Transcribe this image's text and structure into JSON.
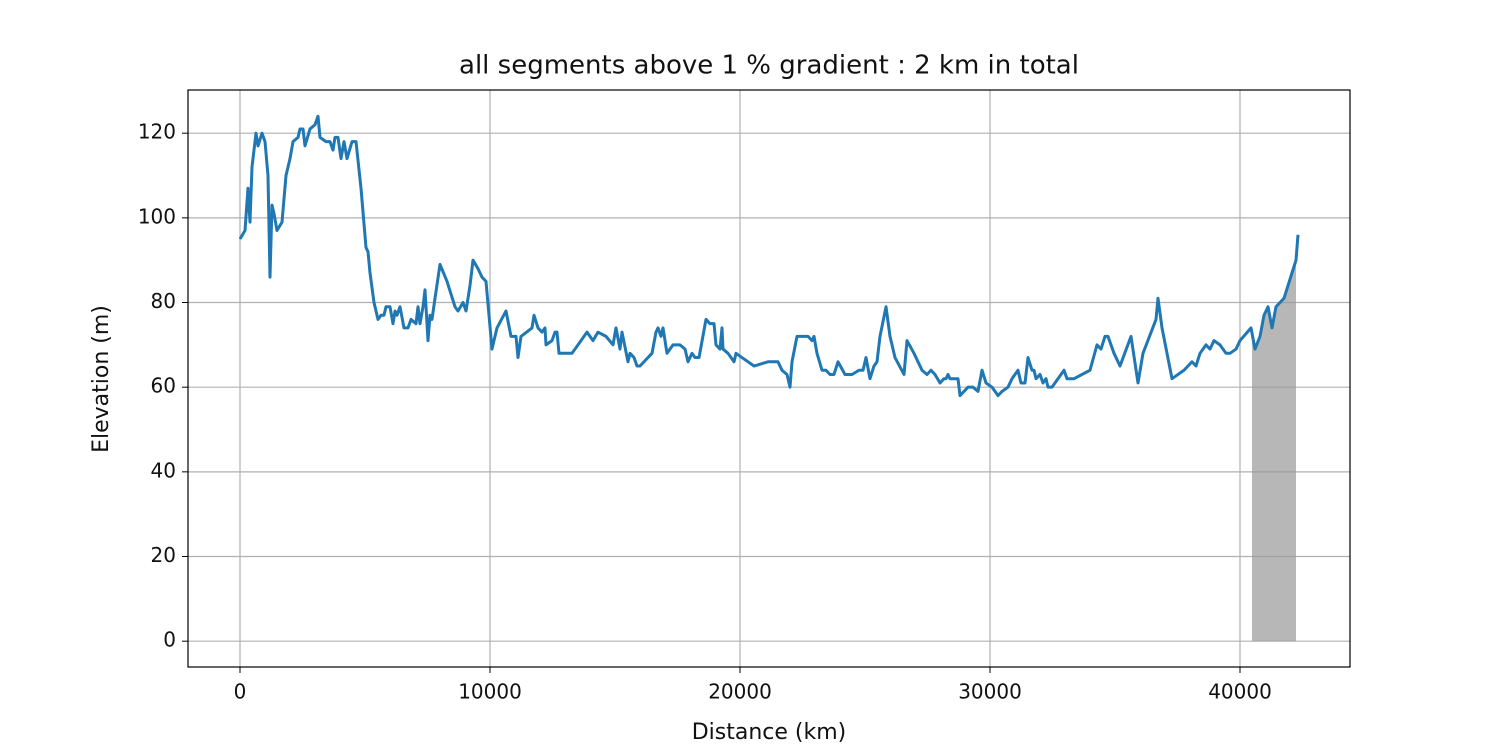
{
  "chart_data": {
    "type": "line",
    "title": "all segments above 1 % gradient : 2 km in total",
    "xlabel": "Distance (km)",
    "ylabel": "Elevation (m)",
    "x": [
      0,
      200,
      320,
      400,
      480,
      640,
      720,
      880,
      1000,
      1120,
      1200,
      1280,
      1360,
      1480,
      1680,
      1840,
      2000,
      2120,
      2320,
      2400,
      2520,
      2600,
      2800,
      3000,
      3120,
      3200,
      3440,
      3600,
      3720,
      3800,
      3920,
      4040,
      4160,
      4280,
      4480,
      4640,
      4840,
      5040,
      5120,
      5200,
      5360,
      5520,
      5640,
      5760,
      5840,
      6000,
      6120,
      6200,
      6280,
      6400,
      6560,
      6720,
      6840,
      7040,
      7120,
      7200,
      7320,
      7400,
      7520,
      7600,
      7680,
      7800,
      8000,
      8280,
      8600,
      8720,
      8920,
      9040,
      9200,
      9320,
      9520,
      9680,
      9840,
      10080,
      10280,
      10640,
      10840,
      11040,
      11120,
      11240,
      11680,
      11760,
      11920,
      12080,
      12200,
      12240,
      12480,
      12600,
      12680,
      12760,
      13280,
      13880,
      14120,
      14320,
      14640,
      14920,
      15040,
      15200,
      15280,
      15520,
      15600,
      15760,
      15880,
      16000,
      16480,
      16640,
      16720,
      16840,
      16920,
      17080,
      17320,
      17600,
      17800,
      17920,
      18080,
      18200,
      18360,
      18640,
      18800,
      18960,
      19040,
      19200,
      19280,
      19320,
      19520,
      19760,
      19840,
      20080,
      20560,
      21120,
      21520,
      21680,
      21880,
      22000,
      22080,
      22280,
      22720,
      22880,
      22960,
      23080,
      23280,
      23440,
      23600,
      23760,
      23920,
      24200,
      24480,
      24760,
      24920,
      25040,
      25200,
      25360,
      25480,
      25600,
      25840,
      26000,
      26200,
      26560,
      26680,
      26960,
      27280,
      27480,
      27640,
      27800,
      28000,
      28160,
      28240,
      28320,
      28400,
      28720,
      28800,
      29120,
      29320,
      29520,
      29680,
      29840,
      30080,
      30320,
      30480,
      30720,
      30880,
      31120,
      31240,
      31400,
      31520,
      31680,
      31760,
      31840,
      32000,
      32120,
      32240,
      32320,
      32480,
      32960,
      33080,
      33360,
      34000,
      34280,
      34440,
      34600,
      34720,
      34960,
      35200,
      35640,
      35920,
      36120,
      36640,
      36720,
      36880,
      37280,
      37760,
      38080,
      38240,
      38400,
      38640,
      38800,
      38960,
      39200,
      39440,
      39600,
      39840,
      40000,
      40440,
      40600,
      40800,
      40960,
      41120,
      41280,
      41440,
      41760,
      42080,
      42240,
      42320
    ],
    "values": [
      95,
      97,
      107,
      99,
      112,
      120,
      117,
      120,
      118,
      110,
      86,
      103,
      101,
      97,
      99,
      110,
      114,
      118,
      119,
      121,
      121,
      117,
      121,
      122,
      124,
      119,
      118,
      118,
      116,
      119,
      119,
      114,
      118,
      114,
      118,
      118,
      107,
      93,
      92,
      87,
      80,
      76,
      77,
      77,
      79,
      79,
      75,
      78,
      77,
      79,
      74,
      74,
      76,
      75,
      79,
      75,
      79,
      83,
      71,
      77,
      76,
      81,
      89,
      85,
      79,
      78,
      80,
      78,
      84,
      90,
      88,
      86,
      85,
      69,
      74,
      78,
      72,
      72,
      67,
      72,
      74,
      77,
      74,
      73,
      74,
      70,
      71,
      73,
      73,
      68,
      68,
      73,
      71,
      73,
      72,
      70,
      74,
      69,
      73,
      66,
      68,
      67,
      65,
      65,
      68,
      73,
      74,
      72,
      74,
      68,
      70,
      70,
      69,
      66,
      68,
      67,
      67,
      76,
      75,
      75,
      70,
      69,
      74,
      69,
      68,
      66,
      68,
      67,
      65,
      66,
      66,
      64,
      63,
      60,
      66,
      72,
      72,
      71,
      72,
      68,
      64,
      64,
      63,
      63,
      66,
      63,
      63,
      64,
      64,
      67,
      62,
      65,
      66,
      72,
      79,
      72,
      67,
      63,
      71,
      68,
      64,
      63,
      64,
      63,
      61,
      62,
      62,
      63,
      62,
      62,
      58,
      60,
      60,
      59,
      64,
      61,
      60,
      58,
      59,
      60,
      62,
      64,
      61,
      61,
      67,
      64,
      64,
      62,
      63,
      61,
      62,
      60,
      60,
      64,
      62,
      62,
      64,
      70,
      69,
      72,
      72,
      68,
      65,
      72,
      61,
      68,
      76,
      81,
      74,
      62,
      64,
      66,
      65,
      68,
      70,
      69,
      71,
      70,
      68,
      68,
      69,
      71,
      74,
      69,
      72,
      77,
      79,
      74,
      79,
      81,
      87,
      90,
      96
    ],
    "color": "#1f77b4",
    "highlight": {
      "xrange": [
        40480,
        42240
      ],
      "color": "#999999"
    },
    "xlim": [
      -2080,
      44400
    ],
    "ylim": [
      -6.1,
      130.2
    ],
    "xticks": [
      0,
      10000,
      20000,
      30000,
      40000
    ],
    "yticks": [
      0,
      20,
      40,
      60,
      80,
      100,
      120
    ],
    "grid": true
  }
}
